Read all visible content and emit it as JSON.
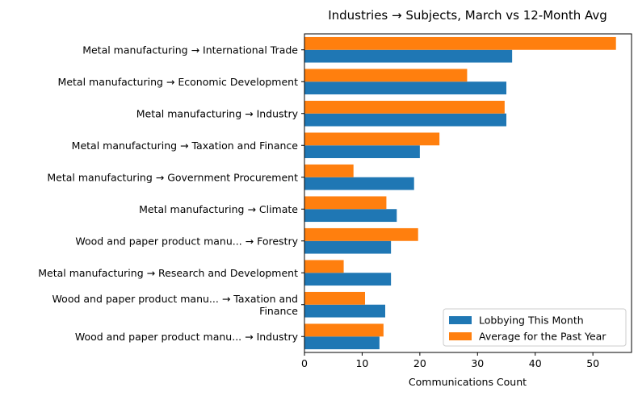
{
  "chart_data": {
    "type": "bar",
    "orientation": "horizontal",
    "title": "Industries → Subjects, March vs 12-Month Avg",
    "xlabel": "Communications Count",
    "ylabel": "",
    "xlim": [
      0,
      56.7
    ],
    "xticks": [
      "0",
      "10",
      "20",
      "30",
      "40",
      "50"
    ],
    "grid": false,
    "legend_position": "lower-right",
    "categories": [
      [
        "Metal manufacturing → International Trade"
      ],
      [
        "Metal manufacturing → Economic Development"
      ],
      [
        "Metal manufacturing → Industry"
      ],
      [
        "Metal manufacturing → Taxation and Finance"
      ],
      [
        "Metal manufacturing → Government Procurement"
      ],
      [
        "Metal manufacturing → Climate"
      ],
      [
        "Wood and paper product manu... → Forestry"
      ],
      [
        "Metal manufacturing → Research and Development"
      ],
      [
        "Wood and paper product manu... → Taxation and",
        "Finance"
      ],
      [
        "Wood and paper product manu... → Industry"
      ]
    ],
    "series": [
      {
        "name": "Lobbying This Month",
        "color": "#1f77b4",
        "values": [
          36,
          35,
          35,
          20,
          19,
          16,
          15,
          15,
          14,
          13
        ]
      },
      {
        "name": "Average for the Past Year",
        "color": "#ff7f0e",
        "values": [
          54,
          28.2,
          34.7,
          23.4,
          8.5,
          14.2,
          19.7,
          6.8,
          10.5,
          13.7
        ]
      }
    ]
  }
}
